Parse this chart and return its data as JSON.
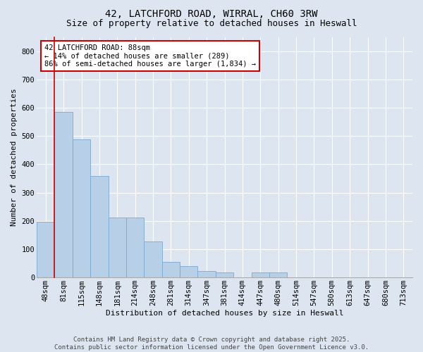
{
  "title_line1": "42, LATCHFORD ROAD, WIRRAL, CH60 3RW",
  "title_line2": "Size of property relative to detached houses in Heswall",
  "xlabel": "Distribution of detached houses by size in Heswall",
  "ylabel": "Number of detached properties",
  "background_color": "#dde6f0",
  "bar_color": "#b8cfe8",
  "bar_edge_color": "#7aaad0",
  "grid_color": "#ffffff",
  "categories": [
    "48sqm",
    "81sqm",
    "115sqm",
    "148sqm",
    "181sqm",
    "214sqm",
    "248sqm",
    "281sqm",
    "314sqm",
    "347sqm",
    "381sqm",
    "414sqm",
    "447sqm",
    "480sqm",
    "514sqm",
    "547sqm",
    "580sqm",
    "613sqm",
    "647sqm",
    "680sqm",
    "713sqm"
  ],
  "values": [
    197,
    586,
    488,
    358,
    213,
    213,
    128,
    55,
    40,
    22,
    18,
    0,
    18,
    18,
    0,
    0,
    0,
    0,
    0,
    0,
    0
  ],
  "ylim": [
    0,
    850
  ],
  "yticks": [
    0,
    100,
    200,
    300,
    400,
    500,
    600,
    700,
    800
  ],
  "annotation_text": "42 LATCHFORD ROAD: 88sqm\n← 14% of detached houses are smaller (289)\n86% of semi-detached houses are larger (1,834) →",
  "annotation_box_color": "#ffffff",
  "annotation_border_color": "#cc0000",
  "red_line_x": 0.5,
  "footer_line1": "Contains HM Land Registry data © Crown copyright and database right 2025.",
  "footer_line2": "Contains public sector information licensed under the Open Government Licence v3.0.",
  "title_fontsize": 10,
  "subtitle_fontsize": 9,
  "axis_label_fontsize": 8,
  "tick_fontsize": 7.5,
  "annotation_fontsize": 7.5,
  "footer_fontsize": 6.5
}
